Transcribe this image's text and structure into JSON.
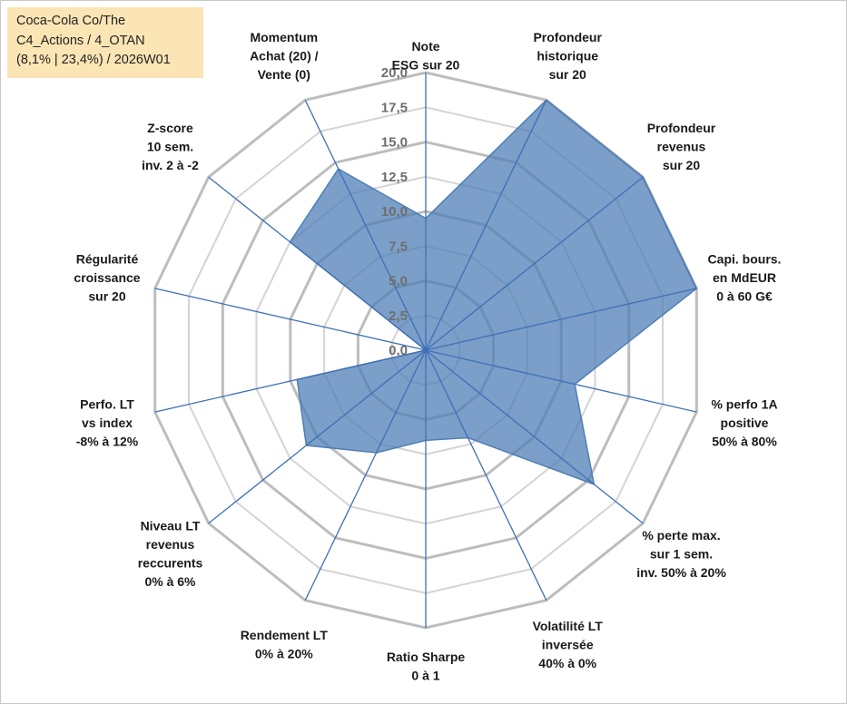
{
  "info": {
    "line1": "Coca-Cola Co/The",
    "line2": "C4_Actions / 4_OTAN",
    "line3": "(8,1% | 23,4%) / 2026W01"
  },
  "colors": {
    "fill": "#4f7fb5",
    "stroke": "#4f7fb5",
    "spoke": "#3e6fb8",
    "grid_major": "#bdbdbd",
    "grid_minor": "#d4d4d4",
    "info_bg": "#fbe5b5"
  },
  "chart_data": {
    "type": "radar",
    "title": "",
    "r_range": [
      0,
      20
    ],
    "ticks": [
      0,
      2.5,
      5,
      7.5,
      10,
      12.5,
      15,
      17.5,
      20
    ],
    "tick_labels": [
      "0,0",
      "2,5",
      "5,0",
      "7,5",
      "10,0",
      "12,5",
      "15,0",
      "17,5",
      "20,0"
    ],
    "axes": [
      {
        "label": [
          "Note",
          "ESG sur 20"
        ],
        "value": 9.5
      },
      {
        "label": [
          "Profondeur",
          "historique",
          "sur 20"
        ],
        "value": 20
      },
      {
        "label": [
          "Profondeur",
          "revenus",
          "sur 20"
        ],
        "value": 20
      },
      {
        "label": [
          "Capi. bours.",
          "en MdEUR",
          "0 à 60 G€"
        ],
        "value": 20
      },
      {
        "label": [
          "% perfo 1A",
          "positive",
          "50% à 80%"
        ],
        "value": 11
      },
      {
        "label": [
          "% perte max.",
          "sur 1 sem.",
          "inv. 50% à 20%"
        ],
        "value": 15.5
      },
      {
        "label": [
          "Volatilité LT",
          "inversée",
          "40% à 0%"
        ],
        "value": 7
      },
      {
        "label": [
          "Ratio Sharpe",
          "0 à 1"
        ],
        "value": 6.5
      },
      {
        "label": [
          "Rendement LT",
          "0% à 20%"
        ],
        "value": 8.2
      },
      {
        "label": [
          "Niveau LT",
          "revenus",
          "reccurents",
          "0% à 6%"
        ],
        "value": 11
      },
      {
        "label": [
          "Perfo. LT",
          "vs index",
          "-8% à 12%"
        ],
        "value": 9.5
      },
      {
        "label": [
          "Régularité",
          "croissance",
          "sur 20"
        ],
        "value": 0
      },
      {
        "label": [
          "Z-score",
          "10 sem.",
          "inv. 2 à -2"
        ],
        "value": 12.5
      },
      {
        "label": [
          "Momentum",
          "Achat (20) /",
          "Vente (0)"
        ],
        "value": 14.5
      }
    ]
  }
}
